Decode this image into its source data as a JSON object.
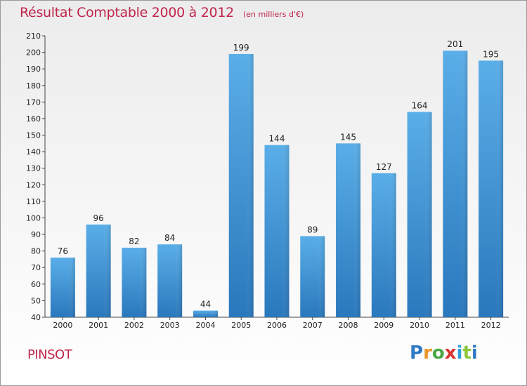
{
  "header": {
    "title": "Résultat Comptable 2000 à 2012",
    "subtitle": "(en milliers d'€)"
  },
  "footer": {
    "commune": "PINSOT",
    "logo_letters": [
      "P",
      "r",
      "o",
      "x",
      "i",
      "t",
      "i"
    ],
    "logo_colors": [
      "#2f78c4",
      "#e8962a",
      "#4aa845",
      "#d9332f",
      "#2f9fd8",
      "#8cc63f",
      "#2f78c4"
    ]
  },
  "colors": {
    "bar": "#3d8fd6",
    "title": "#c0254b"
  },
  "chart_data": {
    "type": "bar",
    "title": "Résultat Comptable 2000 à 2012",
    "categories": [
      "2000",
      "2001",
      "2002",
      "2003",
      "2004",
      "2005",
      "2006",
      "2007",
      "2008",
      "2009",
      "2010",
      "2011",
      "2012"
    ],
    "values": [
      76,
      96,
      82,
      84,
      44,
      199,
      144,
      89,
      145,
      127,
      164,
      201,
      195
    ],
    "ylim": [
      40,
      210
    ],
    "yticks": [
      40,
      50,
      60,
      70,
      80,
      90,
      100,
      110,
      120,
      130,
      140,
      150,
      160,
      170,
      180,
      190,
      200,
      210
    ],
    "grid": false,
    "xlabel": "",
    "ylabel": ""
  }
}
